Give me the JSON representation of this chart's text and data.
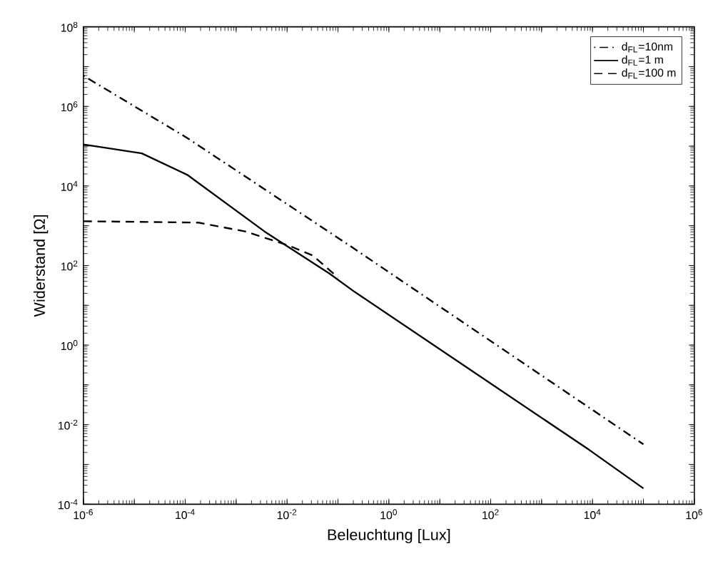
{
  "chart_data": {
    "type": "line",
    "xlabel": "Beleuchtung [Lux]",
    "ylabel": "Widerstand [Ω]",
    "log": "xy",
    "grid": false,
    "legend": "top right",
    "marker": "none",
    "xlim": [
      1e-06,
      1000000.0
    ],
    "ylim": [
      0.0001,
      100000000.0
    ],
    "xticks": [
      {
        "value": 1e-06,
        "label": "10$^{-6}$"
      },
      {
        "value": 1e-05,
        "label": null
      },
      {
        "value": 0.0001,
        "label": "10$^{-4}$"
      },
      {
        "value": 0.001,
        "label": null
      },
      {
        "value": 0.01,
        "label": "10$^{-2}$"
      },
      {
        "value": 0.1,
        "label": null
      },
      {
        "value": 1,
        "label": "10$^{0}$"
      },
      {
        "value": 10,
        "label": null
      },
      {
        "value": 100,
        "label": "10$^{2}$"
      },
      {
        "value": 1000,
        "label": null
      },
      {
        "value": 10000,
        "label": "10$^{4}$"
      },
      {
        "value": 100000,
        "label": null
      },
      {
        "value": 1000000,
        "label": "10$^{6}$"
      }
    ],
    "yticks": [
      {
        "value": 0.0001,
        "label": "10$^{-4}$"
      },
      {
        "value": 0.001,
        "label": null
      },
      {
        "value": 0.01,
        "label": "10$^{-2}$"
      },
      {
        "value": 0.1,
        "label": null
      },
      {
        "value": 1,
        "label": "10$^{0}$"
      },
      {
        "value": 10,
        "label": null
      },
      {
        "value": 100,
        "label": "10$^{2}$"
      },
      {
        "value": 1000,
        "label": null
      },
      {
        "value": 10000,
        "label": "10$^{4}$"
      },
      {
        "value": 100000,
        "label": null
      },
      {
        "value": 1000000,
        "label": "10$^{6}$"
      },
      {
        "value": 10000000,
        "label": null
      },
      {
        "value": 100000000,
        "label": "10$^{8}$"
      }
    ],
    "series": [
      {
        "name": "d$_{FL}$=10nm",
        "color": "#000000",
        "line_style": "dashdot",
        "x": [
          1e-06,
          0.00011,
          0.17,
          100000.0
        ],
        "values": [
          5900000.0,
          160000.0,
          316,
          0.0032
        ]
      },
      {
        "name": "d$_{FL}$=1 m",
        "color": "#000000",
        "line_style": "solid",
        "x": [
          1e-06,
          1.7e-06,
          1.4e-05,
          0.00011,
          0.0036,
          0.068,
          0.2,
          8700.0,
          100000.0
        ],
        "values": [
          110000.0,
          100000.0,
          66000.0,
          19000.0,
          720,
          63,
          23,
          0.0023,
          0.00025
        ]
      },
      {
        "name": "d$_{FL}$=100 m",
        "color": "#000000",
        "line_style": "dashed",
        "x": [
          1e-06,
          0.00018,
          0.0015,
          0.011,
          0.032,
          0.1
        ],
        "values": [
          1300,
          1200,
          720,
          316,
          178,
          50
        ]
      }
    ]
  }
}
